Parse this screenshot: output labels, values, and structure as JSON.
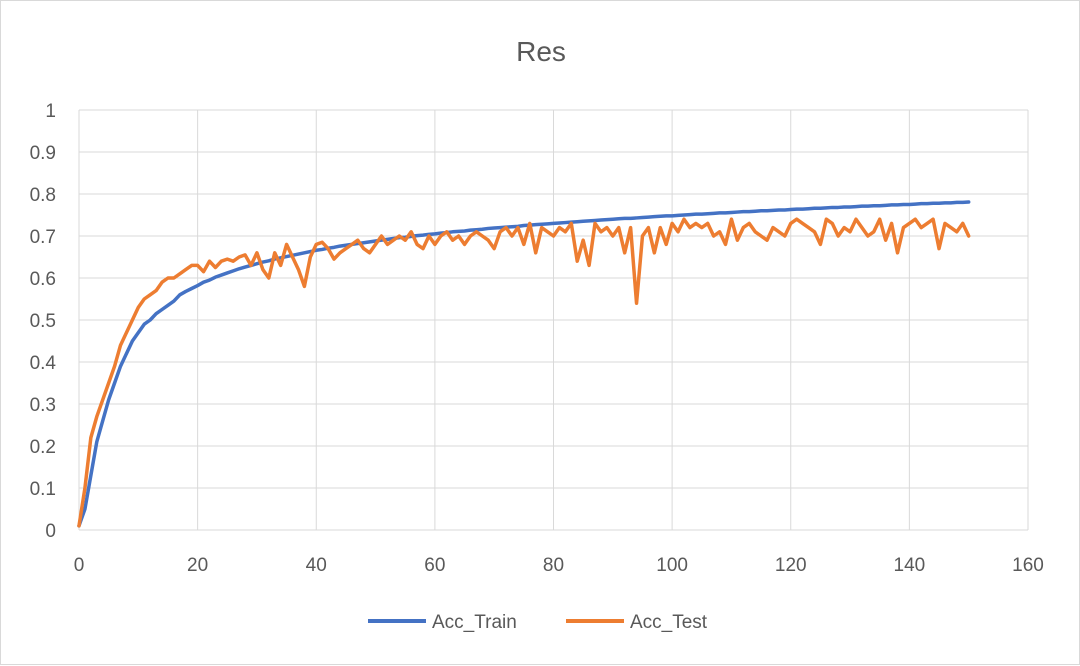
{
  "chart_data": {
    "type": "line",
    "title": "Res",
    "xlabel": "",
    "ylabel": "",
    "xlim": [
      0,
      160
    ],
    "ylim": [
      0,
      1
    ],
    "x_ticks": [
      0,
      20,
      40,
      60,
      80,
      100,
      120,
      140,
      160
    ],
    "y_ticks": [
      0,
      0.1,
      0.2,
      0.3,
      0.4,
      0.5,
      0.6,
      0.7,
      0.8,
      0.9,
      1
    ],
    "grid": true,
    "legend_position": "bottom",
    "x": [
      0,
      1,
      2,
      3,
      4,
      5,
      6,
      7,
      8,
      9,
      10,
      11,
      12,
      13,
      14,
      15,
      16,
      17,
      18,
      19,
      20,
      21,
      22,
      23,
      24,
      25,
      26,
      27,
      28,
      29,
      30,
      31,
      32,
      33,
      34,
      35,
      36,
      37,
      38,
      39,
      40,
      41,
      42,
      43,
      44,
      45,
      46,
      47,
      48,
      49,
      50,
      51,
      52,
      53,
      54,
      55,
      56,
      57,
      58,
      59,
      60,
      61,
      62,
      63,
      64,
      65,
      66,
      67,
      68,
      69,
      70,
      71,
      72,
      73,
      74,
      75,
      76,
      77,
      78,
      79,
      80,
      81,
      82,
      83,
      84,
      85,
      86,
      87,
      88,
      89,
      90,
      91,
      92,
      93,
      94,
      95,
      96,
      97,
      98,
      99,
      100,
      101,
      102,
      103,
      104,
      105,
      106,
      107,
      108,
      109,
      110,
      111,
      112,
      113,
      114,
      115,
      116,
      117,
      118,
      119,
      120,
      121,
      122,
      123,
      124,
      125,
      126,
      127,
      128,
      129,
      130,
      131,
      132,
      133,
      134,
      135,
      136,
      137,
      138,
      139,
      140,
      141,
      142,
      143,
      144,
      145,
      146,
      147,
      148,
      149,
      150
    ],
    "series": [
      {
        "name": "Acc_Train",
        "color": "#4472c4",
        "values": [
          0.01,
          0.05,
          0.13,
          0.21,
          0.26,
          0.31,
          0.35,
          0.39,
          0.42,
          0.45,
          0.47,
          0.49,
          0.5,
          0.515,
          0.525,
          0.535,
          0.545,
          0.56,
          0.568,
          0.575,
          0.582,
          0.59,
          0.595,
          0.602,
          0.607,
          0.612,
          0.617,
          0.622,
          0.626,
          0.63,
          0.634,
          0.638,
          0.641,
          0.645,
          0.648,
          0.651,
          0.654,
          0.657,
          0.66,
          0.663,
          0.666,
          0.668,
          0.671,
          0.673,
          0.676,
          0.678,
          0.68,
          0.682,
          0.684,
          0.686,
          0.688,
          0.69,
          0.692,
          0.694,
          0.696,
          0.697,
          0.699,
          0.701,
          0.702,
          0.704,
          0.705,
          0.707,
          0.708,
          0.71,
          0.711,
          0.712,
          0.714,
          0.715,
          0.716,
          0.718,
          0.719,
          0.72,
          0.721,
          0.722,
          0.723,
          0.725,
          0.726,
          0.727,
          0.728,
          0.729,
          0.73,
          0.731,
          0.732,
          0.733,
          0.734,
          0.735,
          0.736,
          0.737,
          0.738,
          0.739,
          0.74,
          0.741,
          0.742,
          0.742,
          0.743,
          0.744,
          0.745,
          0.746,
          0.747,
          0.748,
          0.748,
          0.749,
          0.75,
          0.751,
          0.752,
          0.752,
          0.753,
          0.754,
          0.755,
          0.755,
          0.756,
          0.757,
          0.758,
          0.758,
          0.759,
          0.76,
          0.76,
          0.761,
          0.762,
          0.762,
          0.763,
          0.764,
          0.764,
          0.765,
          0.766,
          0.766,
          0.767,
          0.768,
          0.768,
          0.769,
          0.769,
          0.77,
          0.771,
          0.771,
          0.772,
          0.772,
          0.773,
          0.774,
          0.774,
          0.775,
          0.775,
          0.776,
          0.777,
          0.777,
          0.778,
          0.778,
          0.779,
          0.779,
          0.78,
          0.78,
          0.781
        ]
      },
      {
        "name": "Acc_Test",
        "color": "#ed7d31",
        "values": [
          0.01,
          0.1,
          0.22,
          0.27,
          0.31,
          0.35,
          0.39,
          0.44,
          0.47,
          0.5,
          0.53,
          0.55,
          0.56,
          0.57,
          0.59,
          0.6,
          0.6,
          0.61,
          0.62,
          0.63,
          0.63,
          0.615,
          0.64,
          0.625,
          0.64,
          0.645,
          0.64,
          0.65,
          0.655,
          0.63,
          0.66,
          0.62,
          0.6,
          0.66,
          0.63,
          0.68,
          0.65,
          0.62,
          0.58,
          0.65,
          0.68,
          0.685,
          0.67,
          0.645,
          0.66,
          0.67,
          0.68,
          0.69,
          0.67,
          0.66,
          0.68,
          0.7,
          0.68,
          0.69,
          0.7,
          0.69,
          0.71,
          0.68,
          0.67,
          0.7,
          0.68,
          0.7,
          0.71,
          0.69,
          0.7,
          0.68,
          0.7,
          0.71,
          0.7,
          0.69,
          0.67,
          0.71,
          0.72,
          0.7,
          0.72,
          0.68,
          0.73,
          0.66,
          0.72,
          0.71,
          0.7,
          0.72,
          0.71,
          0.73,
          0.64,
          0.69,
          0.63,
          0.73,
          0.71,
          0.72,
          0.7,
          0.72,
          0.66,
          0.72,
          0.54,
          0.7,
          0.72,
          0.66,
          0.72,
          0.68,
          0.73,
          0.71,
          0.74,
          0.72,
          0.73,
          0.72,
          0.73,
          0.7,
          0.71,
          0.68,
          0.74,
          0.69,
          0.72,
          0.73,
          0.71,
          0.7,
          0.69,
          0.72,
          0.71,
          0.7,
          0.73,
          0.74,
          0.73,
          0.72,
          0.71,
          0.68,
          0.74,
          0.73,
          0.7,
          0.72,
          0.71,
          0.74,
          0.72,
          0.7,
          0.71,
          0.74,
          0.69,
          0.73,
          0.66,
          0.72,
          0.73,
          0.74,
          0.72,
          0.73,
          0.74,
          0.67,
          0.73,
          0.72,
          0.71,
          0.73,
          0.7
        ]
      }
    ]
  }
}
